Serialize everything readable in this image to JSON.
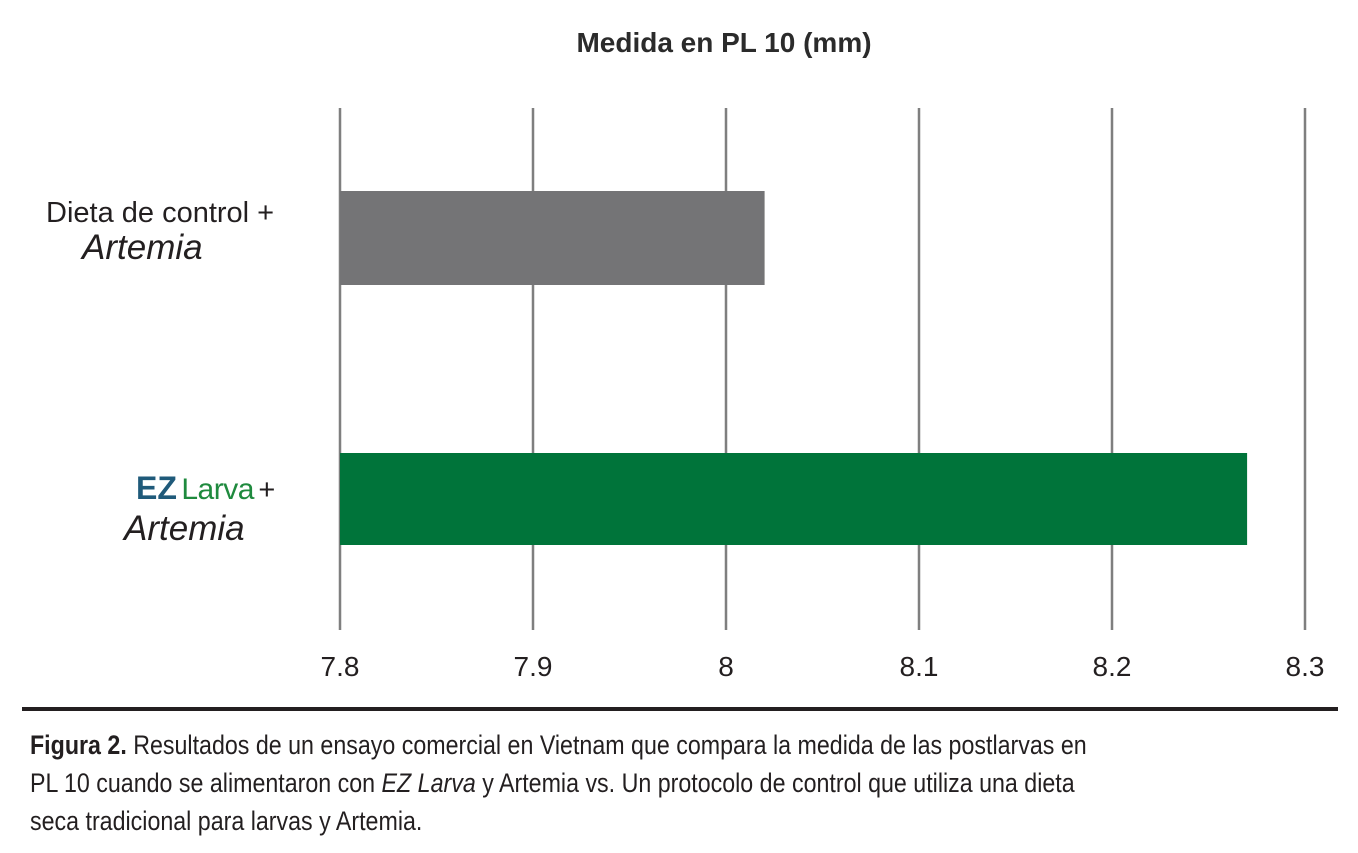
{
  "colors": {
    "control_bar": "#747476",
    "ez_larva_bar": "#00743a",
    "gridline": "#7f7f7f",
    "brand_ez": "#1f5a7a",
    "brand_larva": "#1f8a3e"
  },
  "chart_data": {
    "type": "bar",
    "orientation": "horizontal",
    "title": "Medida en PL 10 (mm)",
    "xlabel": "",
    "ylabel": "",
    "xlim": [
      7.8,
      8.3
    ],
    "grid": true,
    "legend": "none",
    "x_ticks": [
      "7.8",
      "7.9",
      "8",
      "8.1",
      "8.2",
      "8.3"
    ],
    "tick_values": [
      7.8,
      7.9,
      8.0,
      8.1,
      8.2,
      8.3
    ],
    "categories": [
      {
        "line1": "Dieta de control +",
        "line2": "Artemia",
        "value": 8.02,
        "color": "#747476"
      },
      {
        "brand_ez": "EZ",
        "brand_larva": "Larva",
        "plus": "+",
        "line2": "Artemia",
        "value": 8.27,
        "color": "#00743a"
      }
    ]
  },
  "caption": {
    "label": "Figura 2.",
    "text_a": " Resultados de un ensayo comercial en Vietnam que compara la medida de las postlarvas en",
    "text_b": "PL 10 cuando se alimentaron con ",
    "product": "EZ Larva",
    "text_c": " y Artemia vs. Un protocolo de control que utiliza una dieta",
    "text_d": "seca tradicional para larvas y Artemia."
  }
}
